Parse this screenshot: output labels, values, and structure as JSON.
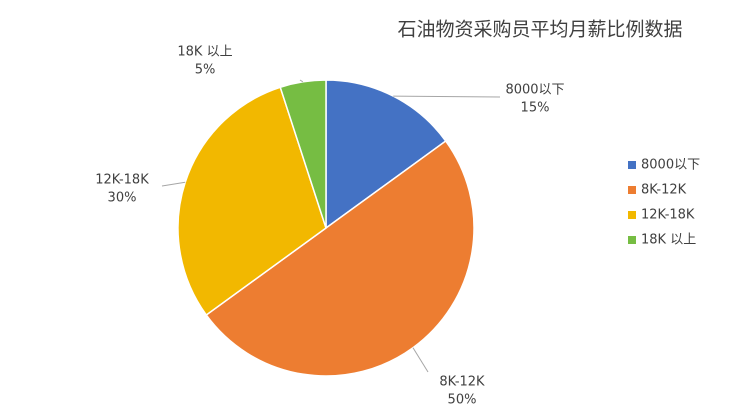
{
  "chart_data": {
    "type": "pie",
    "title": "石油物资采购员平均月薪比例数据",
    "categories": [
      "8000以下",
      "8K-12K",
      "12K-18K",
      "18K 以上"
    ],
    "values": [
      15,
      50,
      30,
      5
    ],
    "value_labels": [
      "15%",
      "50%",
      "30%",
      "5%"
    ],
    "colors": [
      "#4472c4",
      "#ed7d31",
      "#f2b800",
      "#76bd43"
    ],
    "legend": "right"
  }
}
